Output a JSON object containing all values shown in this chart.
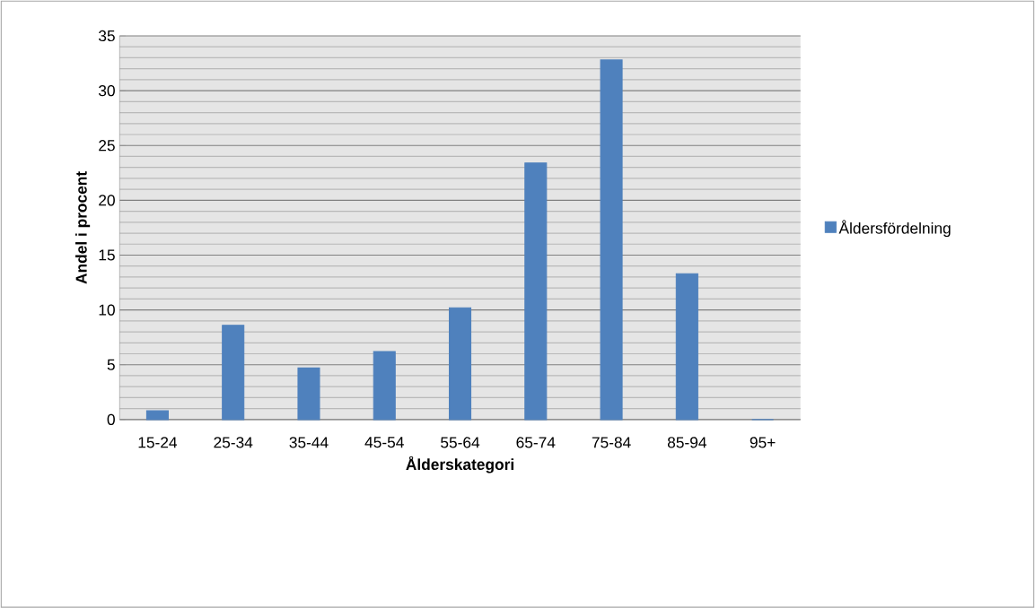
{
  "chart_data": {
    "type": "bar",
    "xlabel": "Ålderskategori",
    "ylabel": "Andel i procent",
    "categories": [
      "15-24",
      "25-34",
      "35-44",
      "45-54",
      "55-64",
      "65-74",
      "75-84",
      "85-94",
      "95+"
    ],
    "series": [
      {
        "name": "Åldersfördelning",
        "color": "#4f81bd",
        "values": [
          0.8,
          8.6,
          4.7,
          6.2,
          10.2,
          23.4,
          32.8,
          13.3,
          0
        ]
      }
    ],
    "ylim": [
      0,
      35
    ],
    "yticks": [
      0,
      5,
      10,
      15,
      20,
      25,
      30,
      35
    ],
    "grid": "y",
    "legend": "right"
  }
}
